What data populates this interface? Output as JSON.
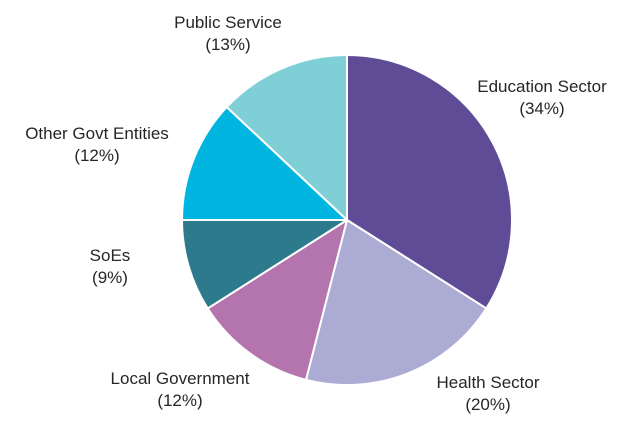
{
  "chart_data": {
    "type": "pie",
    "title": "",
    "legend": "none",
    "series": [
      {
        "values": [
          34,
          20,
          12,
          9,
          12,
          13
        ],
        "labels": [
          "Education Sector",
          "Health Sector",
          "Local Government",
          "SoEs",
          "Other Govt Entities",
          "Public Service"
        ],
        "value_labels": [
          "(34%)",
          "(20%)",
          "(12%)",
          "(9%)",
          "(12%)",
          "(13%)"
        ]
      }
    ],
    "colors": [
      "#5e4c96",
      "#acabd4",
      "#b475ae",
      "#2e7a8d",
      "#00b5df",
      "#7fcfd6"
    ],
    "start": "12 o'clock",
    "direction": "clockwise"
  }
}
